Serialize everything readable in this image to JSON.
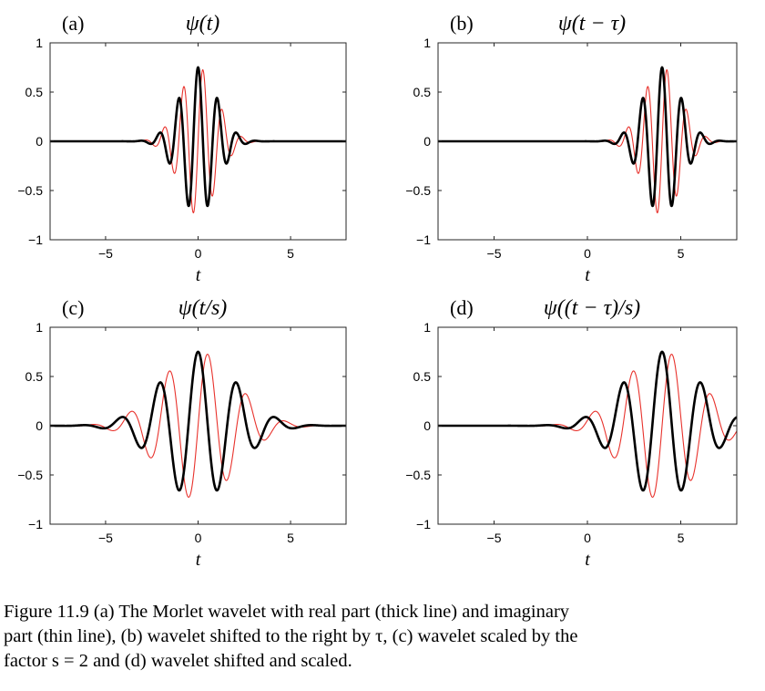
{
  "chart_data": [
    {
      "type": "line",
      "panel_label": "(a)",
      "title": "ψ(t)",
      "xlabel": "t",
      "xlim": [
        -8,
        8
      ],
      "ylim": [
        -1,
        1
      ],
      "xticks": [
        -5,
        0,
        5
      ],
      "yticks": [
        -1,
        -0.5,
        0,
        0.5,
        1
      ],
      "xtick_labels": [
        "−5",
        "0",
        "5"
      ],
      "ytick_labels": [
        "−1",
        "−0.5",
        "0",
        "0.5",
        "1"
      ],
      "grid": false,
      "shift": 0,
      "scale": 1,
      "amplitude": 0.751,
      "omega0": 6,
      "series": [
        {
          "part": "real",
          "color": "#000000",
          "style": "thick line"
        },
        {
          "part": "imaginary",
          "color": "#e8322c",
          "style": "thin line"
        }
      ]
    },
    {
      "type": "line",
      "panel_label": "(b)",
      "title": "ψ(t − τ)",
      "xlabel": "t",
      "xlim": [
        -8,
        8
      ],
      "ylim": [
        -1,
        1
      ],
      "xticks": [
        -5,
        0,
        5
      ],
      "yticks": [
        -1,
        -0.5,
        0,
        0.5,
        1
      ],
      "xtick_labels": [
        "−5",
        "0",
        "5"
      ],
      "ytick_labels": [
        "−1",
        "−0.5",
        "0",
        "0.5",
        "1"
      ],
      "grid": false,
      "shift": 4,
      "scale": 1,
      "amplitude": 0.751,
      "omega0": 6,
      "series": [
        {
          "part": "real",
          "color": "#000000",
          "style": "thick line"
        },
        {
          "part": "imaginary",
          "color": "#e8322c",
          "style": "thin line"
        }
      ]
    },
    {
      "type": "line",
      "panel_label": "(c)",
      "title": "ψ(t/s)",
      "xlabel": "t",
      "xlim": [
        -8,
        8
      ],
      "ylim": [
        -1,
        1
      ],
      "xticks": [
        -5,
        0,
        5
      ],
      "yticks": [
        -1,
        -0.5,
        0,
        0.5,
        1
      ],
      "xtick_labels": [
        "−5",
        "0",
        "5"
      ],
      "ytick_labels": [
        "−1",
        "−0.5",
        "0",
        "0.5",
        "1"
      ],
      "grid": false,
      "shift": 0,
      "scale": 2,
      "amplitude": 0.751,
      "omega0": 6,
      "series": [
        {
          "part": "real",
          "color": "#000000",
          "style": "thick line"
        },
        {
          "part": "imaginary",
          "color": "#e8322c",
          "style": "thin line"
        }
      ]
    },
    {
      "type": "line",
      "panel_label": "(d)",
      "title": "ψ((t − τ)/s)",
      "xlabel": "t",
      "xlim": [
        -8,
        8
      ],
      "ylim": [
        -1,
        1
      ],
      "xticks": [
        -5,
        0,
        5
      ],
      "yticks": [
        -1,
        -0.5,
        0,
        0.5,
        1
      ],
      "xtick_labels": [
        "−5",
        "0",
        "5"
      ],
      "ytick_labels": [
        "−1",
        "−0.5",
        "0",
        "0.5",
        "1"
      ],
      "grid": false,
      "shift": 4,
      "scale": 2,
      "amplitude": 0.751,
      "omega0": 6,
      "series": [
        {
          "part": "real",
          "color": "#000000",
          "style": "thick line"
        },
        {
          "part": "imaginary",
          "color": "#e8322c",
          "style": "thin line"
        }
      ]
    }
  ],
  "caption": {
    "line1": "Figure 11.9 (a) The Morlet wavelet with real part (thick line) and imaginary",
    "line2": "part (thin line), (b) wavelet shifted to the right by τ, (c) wavelet scaled by the",
    "line3": "factor s = 2 and (d) wavelet shifted and scaled."
  }
}
